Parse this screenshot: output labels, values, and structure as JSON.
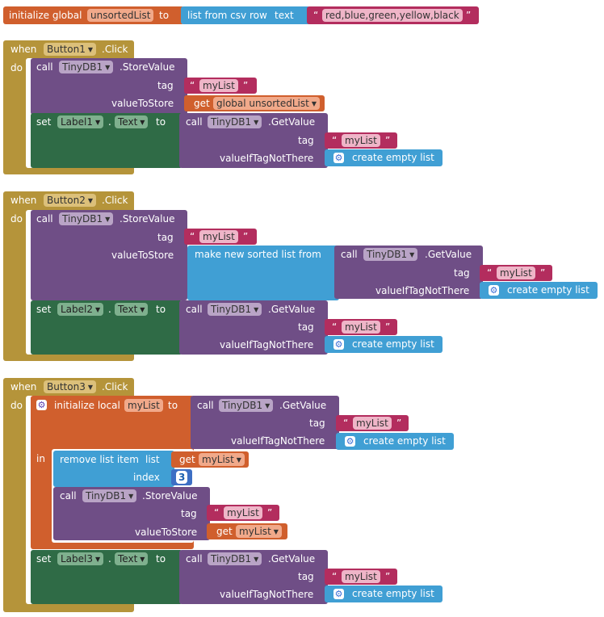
{
  "colors": {
    "gold": "#b5943a",
    "orange": "#d05f2d",
    "blue": "#409fd4",
    "purple": "#6f4e86",
    "green": "#2f6b46",
    "string": "#b32d5e",
    "lists": "#409fd4"
  },
  "init_global": {
    "label": "initialize global",
    "var": "unsortedList",
    "to": "to",
    "csv": "list from csv row",
    "csv_text": "text",
    "value": "red,blue,green,yellow,black"
  },
  "common": {
    "when": "when",
    "do": "do",
    "click": ".Click",
    "call": "call",
    "storevalue": ".StoreValue",
    "getvalue": ".GetValue",
    "tag": "tag",
    "valuetostore": "valueToStore",
    "valueiftag": "valueIfTagNotThere",
    "set": "set",
    "dot": ".",
    "to": "to",
    "create_empty": "create empty list",
    "get": "get",
    "quote_open": "“",
    "quote_close": "”",
    "tinydb": "TinyDB1",
    "text_prop": "Text",
    "mylist": "myList",
    "global_unsorted": "global unsortedList"
  },
  "event1": {
    "button": "Button1",
    "label": "Label1"
  },
  "event2": {
    "button": "Button2",
    "label": "Label2",
    "sorted": "make new sorted list from"
  },
  "event3": {
    "button": "Button3",
    "label": "Label3",
    "init_local": "initialize local",
    "local_var": "myList",
    "in": "in",
    "remove": "remove list item",
    "list": "list",
    "index": "index",
    "index_value": "3"
  }
}
